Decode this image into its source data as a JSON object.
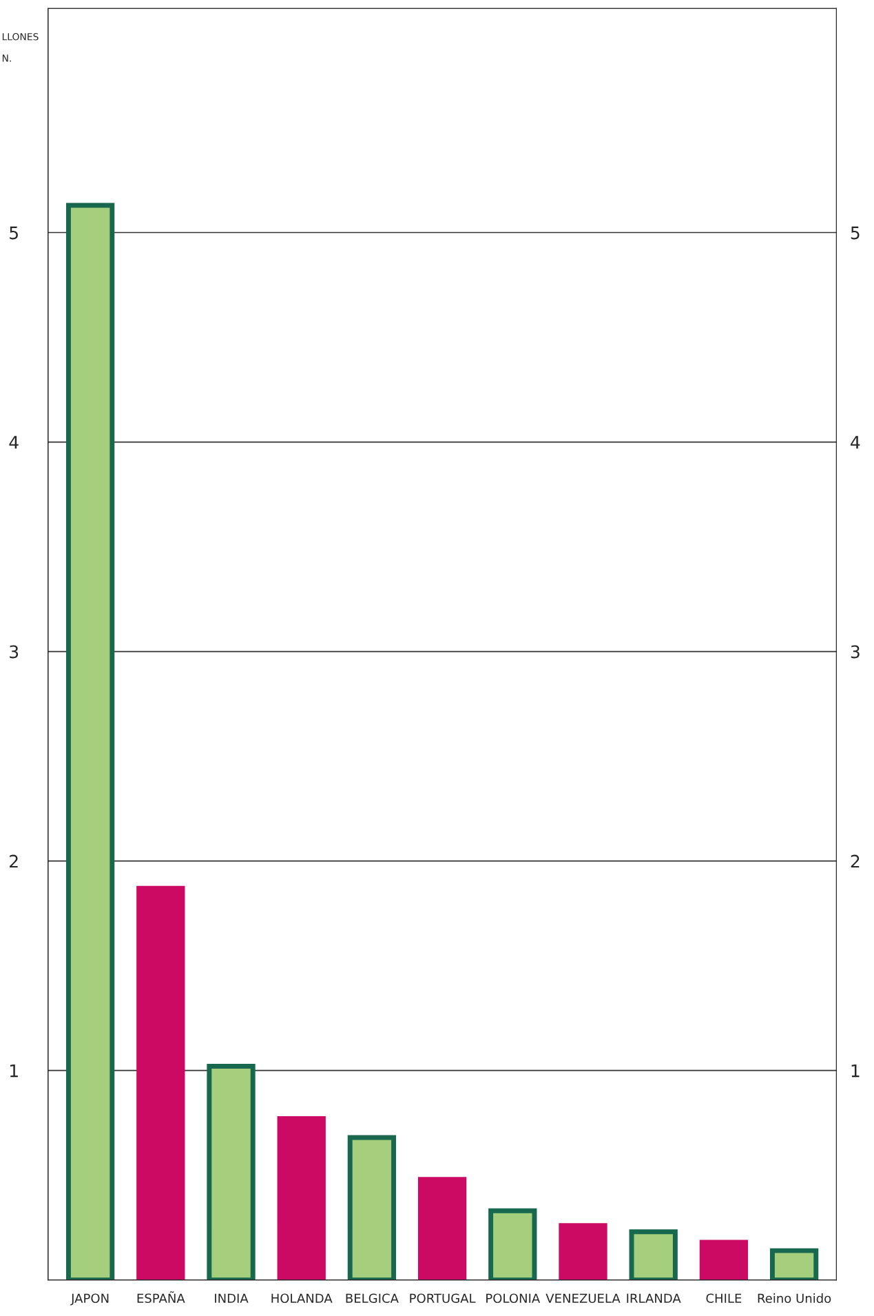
{
  "chart_data": {
    "type": "bar",
    "ylabel": "LLONES\n\nN.",
    "categories": [
      "JAPON",
      "ESPAÑA",
      "INDIA",
      "HOLANDA",
      "BELGICA",
      "PORTUGAL",
      "POLONIA",
      "VENEZUELA",
      "IRLANDA",
      "CHILE",
      "Reino Unido"
    ],
    "values": [
      5.13,
      1.87,
      1.02,
      0.77,
      0.68,
      0.48,
      0.33,
      0.26,
      0.23,
      0.18,
      0.14
    ],
    "colors": [
      "#a5cf7d",
      "#cc0a63",
      "#a5cf7d",
      "#cc0a63",
      "#a5cf7d",
      "#cc0a63",
      "#a5cf7d",
      "#cc0a63",
      "#a5cf7d",
      "#cc0a63",
      "#a5cf7d"
    ],
    "ylim": [
      0,
      6.07
    ],
    "yticks": [
      1,
      2,
      3,
      4,
      5
    ],
    "y2lim": [
      0,
      6.07
    ],
    "y2ticks": [
      1,
      2,
      3,
      4,
      5
    ],
    "grid": "y",
    "legend": false
  }
}
